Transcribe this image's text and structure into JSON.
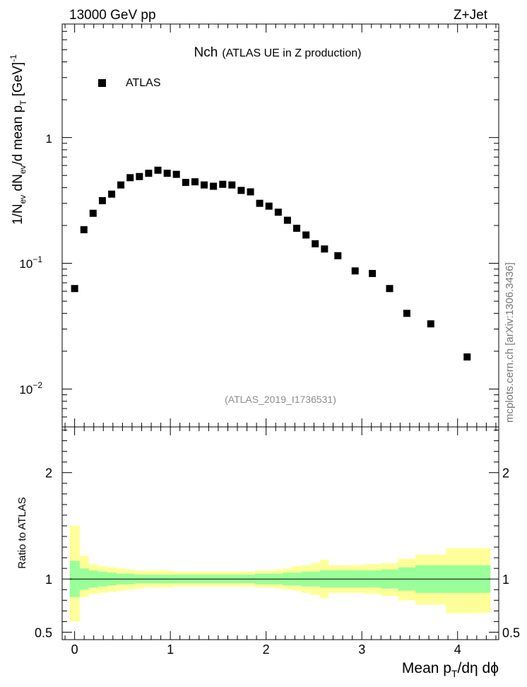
{
  "header": {
    "left": "13000 GeV pp",
    "right": "Z+Jet"
  },
  "watermark": "mcplots.cern.ch [arXiv:1306.3436]",
  "chart_data": [
    {
      "type": "scatter",
      "title_main": "Nch",
      "title_sub": "(ATLAS UE in Z production)",
      "analysis_label": "(ATLAS_2019_I1736531)",
      "ylabel_parts": {
        "a": "1/N",
        "b": "ev",
        "c": " dN",
        "d": "ev",
        "e": "/d mean p",
        "f": "T",
        "g": " [GeV]",
        "h": "-1"
      },
      "yscale": "log",
      "ylim": [
        0.005,
        8
      ],
      "xlim": [
        -0.13,
        4.43
      ],
      "ytick_labels": {
        "one": "1",
        "tenth_base": "10",
        "tenth_exp": "−1",
        "hundredth_base": "10",
        "hundredth_exp": "−2"
      },
      "legend": [
        {
          "label": "ATLAS",
          "marker": "square",
          "color": "#000000"
        }
      ],
      "series": [
        {
          "name": "ATLAS",
          "x": [
            0,
            0.097,
            0.193,
            0.29,
            0.387,
            0.483,
            0.58,
            0.677,
            0.773,
            0.87,
            0.967,
            1.063,
            1.16,
            1.257,
            1.353,
            1.45,
            1.547,
            1.643,
            1.74,
            1.837,
            1.933,
            2.03,
            2.127,
            2.223,
            2.32,
            2.417,
            2.513,
            2.61,
            2.75,
            2.93,
            3.11,
            3.29,
            3.47,
            3.72,
            4.1
          ],
          "y": [
            0.063,
            0.185,
            0.25,
            0.315,
            0.355,
            0.42,
            0.48,
            0.49,
            0.52,
            0.55,
            0.52,
            0.51,
            0.44,
            0.445,
            0.42,
            0.41,
            0.425,
            0.42,
            0.38,
            0.37,
            0.3,
            0.285,
            0.255,
            0.22,
            0.19,
            0.168,
            0.143,
            0.13,
            0.115,
            0.087,
            0.083,
            0.063,
            0.04,
            0.033,
            0.018
          ]
        }
      ]
    },
    {
      "type": "area",
      "ylabel": "Ratio to ATLAS",
      "xlabel_parts": {
        "a": "Mean p",
        "b": "T",
        "c": "/dη dϕ"
      },
      "ylim": [
        0.43,
        2.43
      ],
      "xlim": [
        -0.13,
        4.43
      ],
      "yticks": [
        0.5,
        1,
        2
      ],
      "ytick_labels": [
        "0.5",
        "1",
        "2"
      ],
      "xticks": [
        0,
        1,
        2,
        3,
        4
      ],
      "xtick_labels": [
        "0",
        "1",
        "2",
        "3",
        "4"
      ],
      "reference_line": 1,
      "bin_edges": [
        -0.05,
        0.05,
        0.145,
        0.24,
        0.34,
        0.435,
        0.53,
        0.63,
        0.725,
        0.82,
        0.92,
        1.015,
        1.11,
        1.21,
        1.305,
        1.4,
        1.5,
        1.595,
        1.69,
        1.79,
        1.885,
        1.98,
        2.08,
        2.175,
        2.27,
        2.37,
        2.465,
        2.56,
        2.65,
        2.84,
        3.02,
        3.2,
        3.38,
        3.56,
        3.88,
        4.34
      ],
      "bands": [
        {
          "name": "stat",
          "color": "#99ff99",
          "lower": [
            0.83,
            0.9,
            0.92,
            0.93,
            0.94,
            0.95,
            0.95,
            0.96,
            0.96,
            0.96,
            0.96,
            0.96,
            0.96,
            0.96,
            0.96,
            0.96,
            0.96,
            0.96,
            0.96,
            0.96,
            0.95,
            0.95,
            0.95,
            0.94,
            0.94,
            0.93,
            0.93,
            0.92,
            0.92,
            0.92,
            0.92,
            0.91,
            0.89,
            0.87,
            0.87
          ],
          "upper": [
            1.17,
            1.1,
            1.08,
            1.07,
            1.06,
            1.05,
            1.05,
            1.04,
            1.04,
            1.04,
            1.04,
            1.04,
            1.04,
            1.04,
            1.04,
            1.04,
            1.04,
            1.04,
            1.04,
            1.04,
            1.05,
            1.05,
            1.05,
            1.06,
            1.06,
            1.07,
            1.07,
            1.08,
            1.08,
            1.08,
            1.08,
            1.09,
            1.11,
            1.13,
            1.13
          ]
        },
        {
          "name": "total",
          "color": "#ffff99",
          "lower": [
            0.6,
            0.83,
            0.86,
            0.87,
            0.88,
            0.89,
            0.9,
            0.91,
            0.92,
            0.92,
            0.92,
            0.93,
            0.93,
            0.93,
            0.93,
            0.93,
            0.93,
            0.93,
            0.93,
            0.93,
            0.92,
            0.92,
            0.91,
            0.9,
            0.89,
            0.87,
            0.85,
            0.82,
            0.87,
            0.87,
            0.86,
            0.84,
            0.8,
            0.76,
            0.68
          ],
          "upper": [
            1.5,
            1.22,
            1.14,
            1.12,
            1.11,
            1.1,
            1.09,
            1.08,
            1.08,
            1.08,
            1.08,
            1.07,
            1.07,
            1.07,
            1.07,
            1.07,
            1.07,
            1.07,
            1.07,
            1.07,
            1.08,
            1.08,
            1.09,
            1.1,
            1.12,
            1.13,
            1.15,
            1.18,
            1.13,
            1.13,
            1.14,
            1.15,
            1.19,
            1.23,
            1.29
          ]
        }
      ]
    }
  ]
}
